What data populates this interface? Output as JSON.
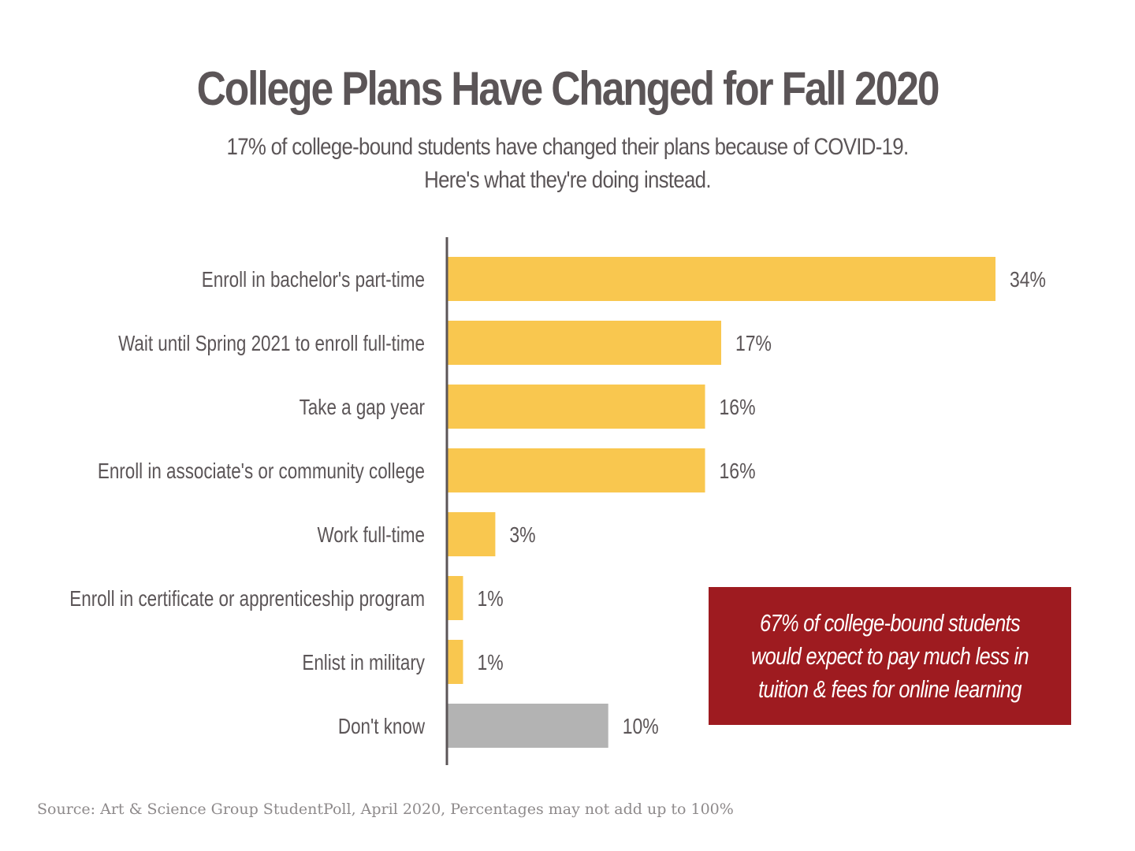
{
  "title": "College Plans Have Changed for Fall 2020",
  "subtitle_line1": "17% of college-bound students have changed their plans because of COVID-19.",
  "subtitle_line2": "Here's what they're doing instead.",
  "callout": "67% of college-bound students\nwould expect to pay much less in\ntuition & fees for online learning",
  "source": "Source: Art & Science Group StudentPoll, April 2020, Percentages may not add up to 100%",
  "colors": {
    "bar": "#f9c74f",
    "bar_unknown": "#b3b3b3",
    "axis": "#5b5557",
    "text": "#5b5557",
    "callout_bg": "#9e1b20"
  },
  "chart_data": {
    "type": "bar",
    "orientation": "horizontal",
    "categories": [
      "Enroll in bachelor's part-time",
      "Wait until Spring 2021 to enroll full-time",
      "Take a gap year",
      "Enroll in associate's or community college",
      "Work full-time",
      "Enroll in certificate or apprenticeship program",
      "Enlist in military",
      "Don't know"
    ],
    "values": [
      34,
      17,
      16,
      16,
      3,
      1,
      1,
      10
    ],
    "value_labels": [
      "34%",
      "17%",
      "16%",
      "16%",
      "3%",
      "1%",
      "1%",
      "10%"
    ],
    "highlight": [
      false,
      false,
      false,
      false,
      false,
      false,
      false,
      true
    ],
    "xlim": [
      0,
      34
    ],
    "grid": false
  }
}
